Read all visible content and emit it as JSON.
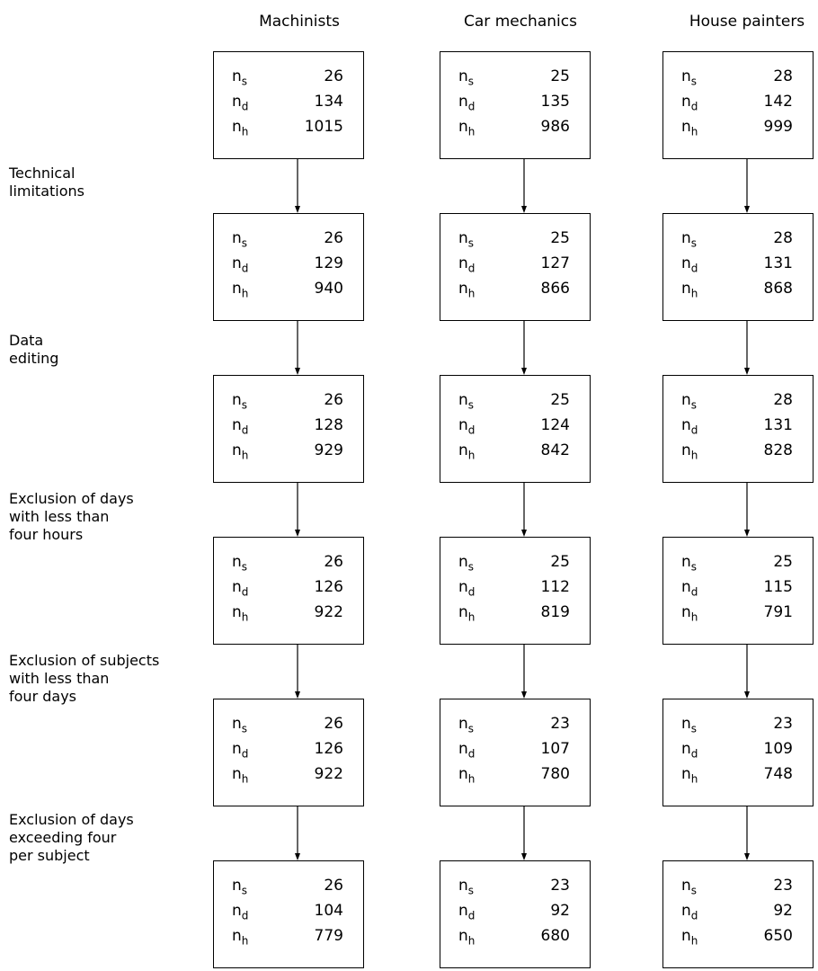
{
  "columns": [
    {
      "name": "Machinists",
      "boxes": [
        [
          "26",
          "134",
          "1015"
        ],
        [
          "26",
          "129",
          "940"
        ],
        [
          "26",
          "128",
          "929"
        ],
        [
          "26",
          "126",
          "922"
        ],
        [
          "26",
          "126",
          "922"
        ],
        [
          "26",
          "104",
          "779"
        ]
      ]
    },
    {
      "name": "Car mechanics",
      "boxes": [
        [
          "25",
          "135",
          "986"
        ],
        [
          "25",
          "127",
          "866"
        ],
        [
          "25",
          "124",
          "842"
        ],
        [
          "25",
          "112",
          "819"
        ],
        [
          "23",
          "107",
          "780"
        ],
        [
          "23",
          "92",
          "680"
        ]
      ]
    },
    {
      "name": "House painters",
      "boxes": [
        [
          "28",
          "142",
          "999"
        ],
        [
          "28",
          "131",
          "868"
        ],
        [
          "28",
          "131",
          "828"
        ],
        [
          "25",
          "115",
          "791"
        ],
        [
          "23",
          "109",
          "748"
        ],
        [
          "23",
          "92",
          "650"
        ]
      ]
    }
  ],
  "row_symbols": [
    {
      "base": "n",
      "sub": "s"
    },
    {
      "base": "n",
      "sub": "d"
    },
    {
      "base": "n",
      "sub": "h"
    }
  ],
  "steps": [
    "Technical\nlimitations",
    "Data\nediting",
    "Exclusion of days\nwith less than\nfour hours",
    "Exclusion of subjects\nwith less than\nfour days",
    "Exclusion of days\nexceeding four\nper subject"
  ]
}
